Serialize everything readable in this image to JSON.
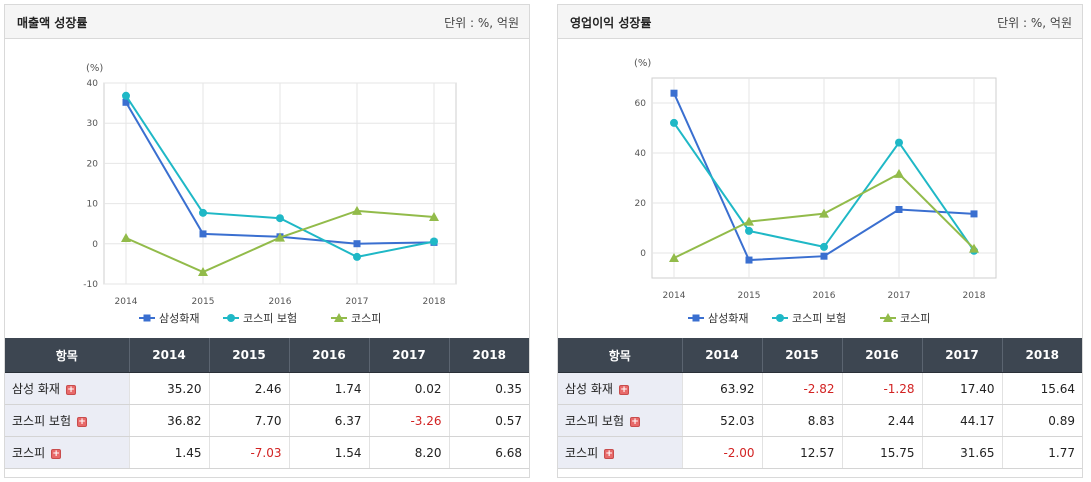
{
  "colors": {
    "samsung": "#3a6fd0",
    "kospi_insurance": "#1fb8c6",
    "kospi": "#92bb4a"
  },
  "icons": {
    "expand": "plus-icon"
  },
  "panels": [
    {
      "title": "매출액 성장률",
      "unit": "단위 : %, 억원",
      "y_unit_label": "(%)",
      "table": {
        "header": [
          "항목",
          "2014",
          "2015",
          "2016",
          "2017",
          "2018"
        ],
        "rows": [
          {
            "label": "삼성 화재",
            "values": [
              "35.20",
              "2.46",
              "1.74",
              "0.02",
              "0.35"
            ]
          },
          {
            "label": "코스피 보험",
            "values": [
              "36.82",
              "7.70",
              "6.37",
              "-3.26",
              "0.57"
            ]
          },
          {
            "label": "코스피",
            "values": [
              "1.45",
              "-7.03",
              "1.54",
              "8.20",
              "6.68"
            ]
          }
        ]
      }
    },
    {
      "title": "영업이익 성장률",
      "unit": "단위 : %, 억원",
      "y_unit_label": "(%)",
      "table": {
        "header": [
          "항목",
          "2014",
          "2015",
          "2016",
          "2017",
          "2018"
        ],
        "rows": [
          {
            "label": "삼성 화재",
            "values": [
              "63.92",
              "-2.82",
              "-1.28",
              "17.40",
              "15.64"
            ]
          },
          {
            "label": "코스피 보험",
            "values": [
              "52.03",
              "8.83",
              "2.44",
              "44.17",
              "0.89"
            ]
          },
          {
            "label": "코스피",
            "values": [
              "-2.00",
              "12.57",
              "15.75",
              "31.65",
              "1.77"
            ]
          }
        ]
      }
    }
  ],
  "chart_data": [
    {
      "type": "line",
      "title": "매출액 성장률",
      "ylabel": "(%)",
      "x": [
        "2014",
        "2015",
        "2016",
        "2017",
        "2018"
      ],
      "yticks": [
        40,
        30,
        20,
        10,
        0,
        -10
      ],
      "ylim": [
        -10,
        40
      ],
      "grid": true,
      "legend_position": "bottom",
      "series": [
        {
          "name": "삼성화재",
          "values": [
            35.2,
            2.46,
            1.74,
            0.02,
            0.35
          ],
          "marker": "square"
        },
        {
          "name": "코스피 보험",
          "values": [
            36.82,
            7.7,
            6.37,
            -3.26,
            0.57
          ],
          "marker": "diamond"
        },
        {
          "name": "코스피",
          "values": [
            1.45,
            -7.03,
            1.54,
            8.2,
            6.68
          ],
          "marker": "triangle"
        }
      ]
    },
    {
      "type": "line",
      "title": "영업이익 성장률",
      "ylabel": "(%)",
      "x": [
        "2014",
        "2015",
        "2016",
        "2017",
        "2018"
      ],
      "yticks": [
        60,
        40,
        20,
        0
      ],
      "ylim": [
        -10,
        70
      ],
      "grid": true,
      "legend_position": "bottom",
      "series": [
        {
          "name": "삼성화재",
          "values": [
            63.92,
            -2.82,
            -1.28,
            17.4,
            15.64
          ],
          "marker": "square"
        },
        {
          "name": "코스피 보험",
          "values": [
            52.03,
            8.83,
            2.44,
            44.17,
            0.89
          ],
          "marker": "diamond"
        },
        {
          "name": "코스피",
          "values": [
            -2.0,
            12.57,
            15.75,
            31.65,
            1.77
          ],
          "marker": "triangle"
        }
      ]
    }
  ]
}
